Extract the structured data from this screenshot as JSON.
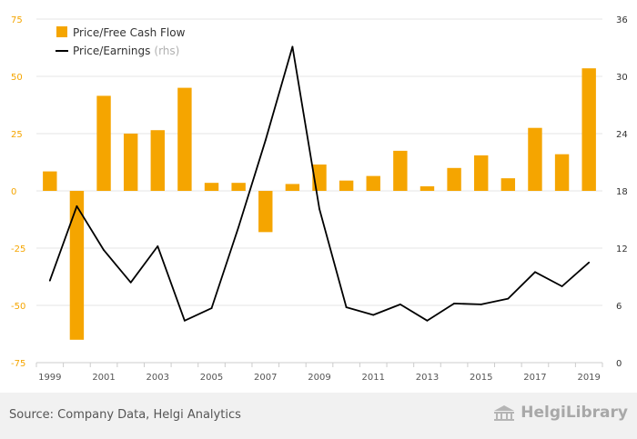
{
  "chart_data": {
    "type": "bar",
    "x": [
      1999,
      2000,
      2001,
      2002,
      2003,
      2004,
      2005,
      2006,
      2007,
      2008,
      2009,
      2010,
      2011,
      2012,
      2013,
      2014,
      2015,
      2016,
      2017,
      2018,
      2019
    ],
    "x_tick_labels": [
      "1999",
      "2001",
      "2003",
      "2005",
      "2007",
      "2009",
      "2011",
      "2013",
      "2015",
      "2017",
      "2019"
    ],
    "y_left_ticks": [
      "75",
      "50",
      "25",
      "0",
      "-25",
      "-50",
      "-75"
    ],
    "y_right_ticks": [
      "36",
      "30",
      "24",
      "18",
      "12",
      "6",
      "0"
    ],
    "ylim_left": [
      -75,
      75
    ],
    "ylim_right": [
      0,
      36
    ],
    "grid": true,
    "legend_position": "top-left",
    "series": [
      {
        "name": "Price/Free Cash Flow",
        "type": "bar",
        "axis": "left",
        "color": "#f5a500",
        "values": [
          8.5,
          -65,
          41.5,
          25,
          26.5,
          45,
          3.5,
          3.5,
          -18,
          3,
          11.5,
          4.5,
          6.5,
          17.5,
          2,
          10,
          15.5,
          5.5,
          27.5,
          16,
          53.5
        ]
      },
      {
        "name": "Price/Earnings",
        "name_suffix": "(rhs)",
        "type": "line",
        "axis": "right",
        "color": "#000000",
        "values": [
          8.6,
          16.4,
          11.8,
          8.4,
          12.2,
          4.4,
          5.7,
          14.2,
          23.3,
          33.1,
          16.1,
          5.8,
          5.0,
          6.1,
          4.4,
          6.2,
          6.1,
          6.7,
          9.5,
          8.0,
          10.5
        ]
      }
    ]
  },
  "footer": {
    "source": "Source: Company Data, Helgi Analytics",
    "brand": "HelgiLibrary"
  }
}
